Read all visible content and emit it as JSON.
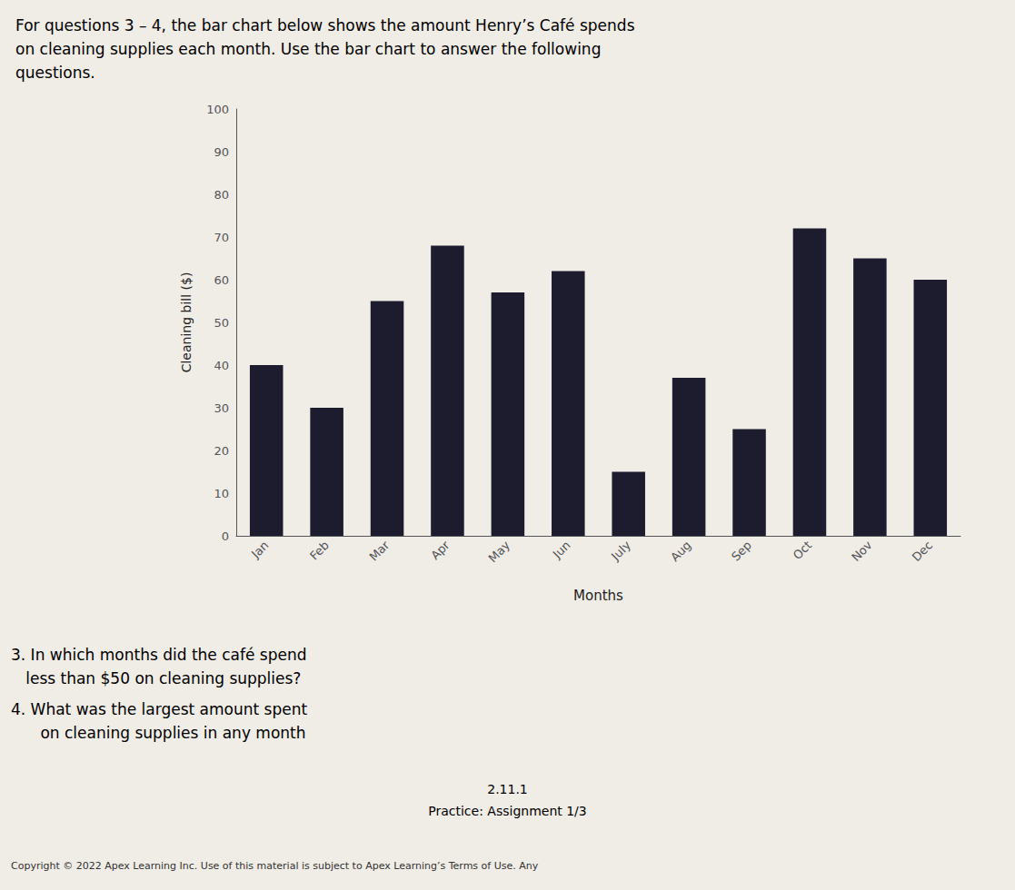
{
  "chart_data": {
    "type": "bar",
    "title": "For questions 3 – 4, the bar chart below shows the amount Henry’s Café spends\non cleaning supplies each month. Use the bar chart to answer the following\nquestions.",
    "xlabel": "Months",
    "ylabel": "Cleaning bill ($)",
    "categories": [
      "Jan",
      "Feb",
      "Mar",
      "Apr",
      "May",
      "Jun",
      "July",
      "Aug",
      "Sep",
      "Oct",
      "Nov",
      "Dec"
    ],
    "values": [
      40,
      30,
      55,
      68,
      57,
      62,
      15,
      37,
      25,
      72,
      65,
      60
    ],
    "color": "#1c1c2e",
    "ylim": [
      0,
      100
    ],
    "yticks": [
      0,
      10,
      20,
      30,
      40,
      50,
      60,
      70,
      80,
      90,
      100
    ],
    "grid": false,
    "annotations": [
      "3. In which months did the café spend",
      "   less than $50 on cleaning supplies?",
      "4. What was the largest amount spent",
      "      on cleaning supplies in any month",
      "2.11.1",
      "Practice: Assignment 1/3",
      "Copyright © 2022 Apex Learning Inc. Use of this material is subject to Apex Learning’s Terms of Use. Any"
    ]
  }
}
